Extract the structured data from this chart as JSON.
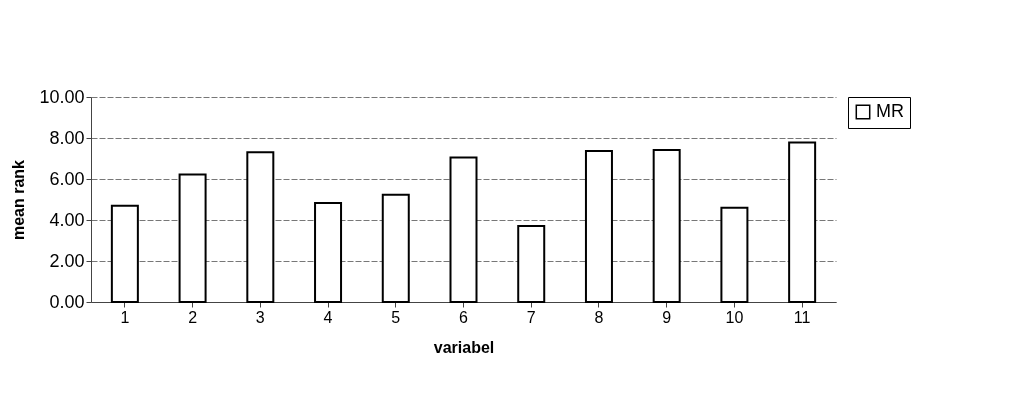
{
  "chart_data": {
    "type": "bar",
    "xlabel": "variabel",
    "ylabel": "mean rank",
    "categories": [
      "1",
      "2",
      "3",
      "4",
      "5",
      "6",
      "7",
      "8",
      "9",
      "10",
      "11"
    ],
    "series": [
      {
        "name": "MR",
        "color": "#ffffff",
        "values": [
          4.7,
          6.22,
          7.3,
          4.83,
          5.23,
          7.05,
          3.71,
          7.36,
          7.42,
          4.6,
          7.78
        ]
      }
    ],
    "ylim": [
      0,
      10
    ],
    "yticks": [
      {
        "value": 0,
        "label": "0.00"
      },
      {
        "value": 2,
        "label": "2.00"
      },
      {
        "value": 4,
        "label": "4.00"
      },
      {
        "value": 6,
        "label": "6.00"
      },
      {
        "value": 8,
        "label": "8.00"
      },
      {
        "value": 10,
        "label": "10.00"
      }
    ],
    "grid": "y",
    "legend": "right"
  }
}
